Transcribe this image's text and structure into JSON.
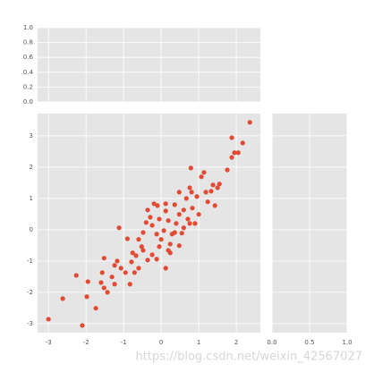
{
  "chart_data": [
    {
      "type": "empty",
      "xlim": [
        -3.29,
        2.64
      ],
      "xticks": [
        -3,
        -2,
        -1,
        0,
        1,
        2
      ],
      "xtick_labels": false,
      "ylim": [
        0,
        1
      ],
      "yticks": [
        {
          "value": 0,
          "label": "0.0"
        },
        {
          "value": 0.2,
          "label": "0.2"
        },
        {
          "value": 0.4,
          "label": "0.4"
        },
        {
          "value": 0.6,
          "label": "0.6"
        },
        {
          "value": 0.8,
          "label": "0.8"
        },
        {
          "value": 1,
          "label": "1.0"
        }
      ],
      "ytick_labels": true,
      "grid": true,
      "background": "#e5e5e5"
    },
    {
      "type": "scatter",
      "color": "#e24a33",
      "xlim": [
        -3.29,
        2.64
      ],
      "xticks": [
        -3,
        -2,
        -1,
        0,
        1,
        2
      ],
      "xtick_labels": true,
      "ylim": [
        -3.29,
        3.71
      ],
      "yticks": [
        -3,
        -2,
        -1,
        0,
        1,
        2,
        3
      ],
      "ytick_labels": true,
      "grid": true,
      "background": "#e5e5e5",
      "x": [
        2.36,
        2.17,
        1.88,
        1.95,
        2.05,
        1.76,
        1.55,
        -3.0,
        -2.62,
        -2.1,
        -2.26,
        -1.74,
        -1.98,
        -1.95,
        -1.6,
        -1.52,
        -1.57,
        -1.52,
        -1.43,
        -1.24,
        -1.24,
        -1.17,
        -1.12,
        -0.9,
        -0.79,
        -0.71,
        -0.76,
        -0.67,
        -0.6,
        -0.52,
        -0.48,
        -0.4,
        -0.36,
        -0.29,
        -0.19,
        -0.24,
        -0.12,
        -0.05,
        0.0,
        0.07,
        0.12,
        0.19,
        0.24,
        0.29,
        0.36,
        0.4,
        0.48,
        0.55,
        0.6,
        0.67,
        0.71,
        0.76,
        0.79,
        0.83,
        0.9,
        0.95,
        1.07,
        1.14,
        1.19,
        1.24,
        1.33,
        1.38,
        1.43,
        1.5,
        1.88,
        -0.48,
        -0.24,
        -0.05,
        0.19,
        0.36,
        0.48,
        0.6,
        0.76,
        -0.95,
        -1.07,
        -1.31,
        -0.83,
        -0.6,
        -0.36,
        -0.12,
        0.12,
        0.24,
        -0.1,
        0.12,
        0.48,
        0.81,
        1.0
      ],
      "values": [
        3.43,
        2.77,
        2.94,
        2.46,
        2.46,
        1.91,
        1.46,
        -2.86,
        -2.2,
        -3.06,
        -1.46,
        -2.51,
        -2.14,
        -1.66,
        -1.69,
        -1.86,
        -1.37,
        -0.91,
        -2.0,
        -1.74,
        -1.14,
        -1.0,
        0.06,
        -0.29,
        -1.03,
        -1.37,
        -0.74,
        -0.83,
        -0.31,
        -0.54,
        -0.09,
        0.23,
        0.63,
        0.4,
        0.83,
        0.14,
        -0.14,
        0.34,
        -0.31,
        -0.03,
        0.6,
        0.29,
        -0.46,
        -0.14,
        0.8,
        0.2,
        0.49,
        -0.11,
        0.63,
        1.0,
        0.34,
        1.34,
        1.97,
        0.69,
        0.2,
        1.06,
        1.69,
        1.83,
        1.2,
        0.89,
        1.23,
        1.43,
        0.77,
        1.34,
        2.31,
        -0.66,
        -0.8,
        -0.54,
        -0.66,
        -0.09,
        -0.51,
        0.06,
        0.2,
        -1.37,
        -1.23,
        -1.51,
        -1.74,
        -1.23,
        -0.97,
        -0.94,
        -1.23,
        -0.74,
        0.77,
        0.83,
        1.2,
        1.2,
        0.49
      ]
    },
    {
      "type": "empty",
      "xlim": [
        0,
        1
      ],
      "xticks": [
        {
          "value": 0,
          "label": "0.0"
        },
        {
          "value": 0.5,
          "label": "0.5"
        },
        {
          "value": 1,
          "label": "1.0"
        }
      ],
      "xtick_labels": true,
      "ylim": [
        -3.29,
        3.71
      ],
      "yticks": [
        -3,
        -2,
        -1,
        0,
        1,
        2,
        3
      ],
      "ytick_labels": false,
      "grid": true,
      "background": "#e5e5e5"
    }
  ],
  "watermark": "https://blog.csdn.net/weixin_42567027"
}
